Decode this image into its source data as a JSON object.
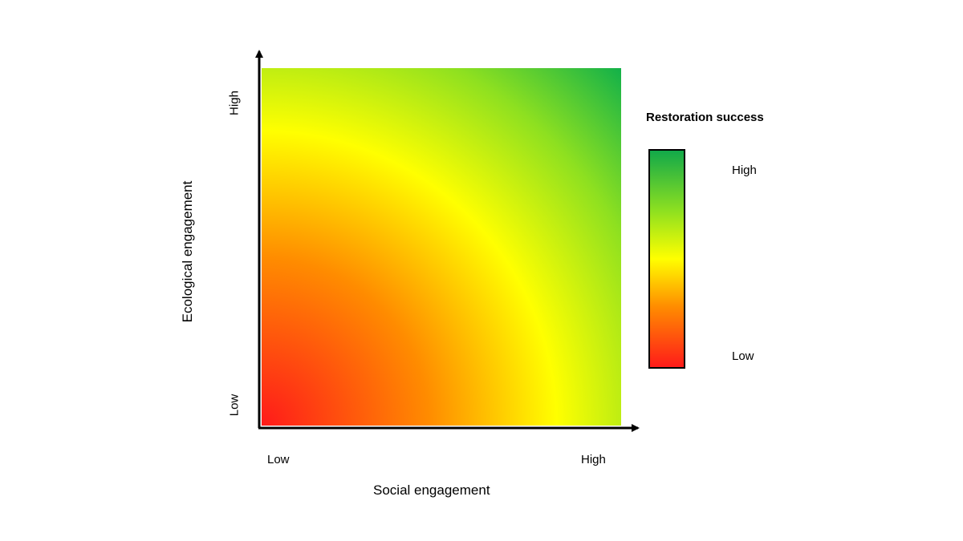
{
  "diagram": {
    "x_axis": {
      "title": "Social engagement",
      "low_label": "Low",
      "high_label": "High"
    },
    "y_axis": {
      "title": "Ecological engagement",
      "low_label": "Low",
      "high_label": "High"
    },
    "legend": {
      "title": "Restoration success",
      "high_label": "High",
      "low_label": "Low",
      "scale_colors": [
        "#ff1a1a",
        "#ff8c00",
        "#ffff00",
        "#8ee020",
        "#10a84a"
      ]
    },
    "field_colors": {
      "low": "#ff1a1a",
      "mid_low": "#ff8c00",
      "mid": "#ffff00",
      "mid_high": "#8ee020",
      "high": "#10b04a"
    }
  }
}
